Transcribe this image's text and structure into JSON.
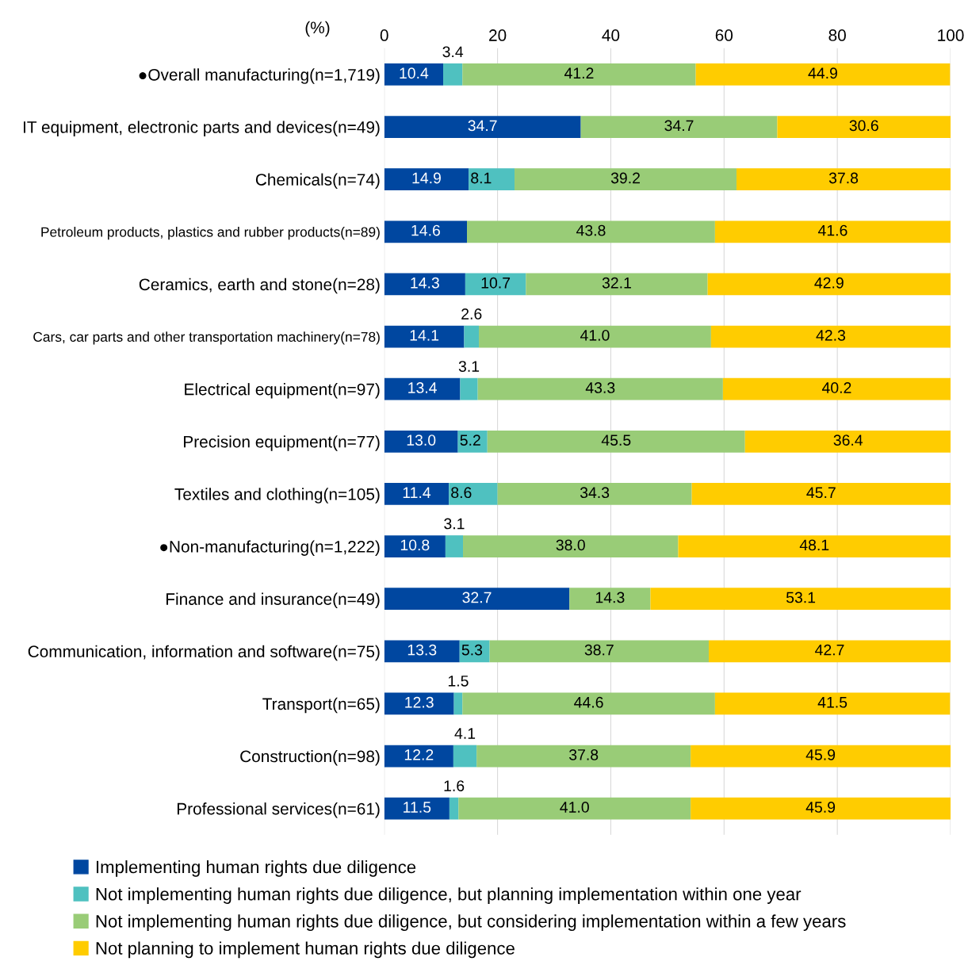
{
  "chart_data": {
    "type": "bar",
    "orientation": "horizontal",
    "stacked": true,
    "grid": "x",
    "legend": "bottom",
    "categories": [
      "●Overall manufacturing(n=1,719)",
      "IT equipment, electronic parts and devices(n=49)",
      "Chemicals(n=74)",
      "Petroleum products, plastics and rubber products(n=89)",
      "Ceramics, earth and stone(n=28)",
      "Cars, car parts and other transportation machinery(n=78)",
      "Electrical equipment(n=97)",
      "Precision equipment(n=77)",
      "Textiles and clothing(n=105)",
      "●Non-manufacturing(n=1,222)",
      "Finance and insurance(n=49)",
      "Communication, information and software(n=75)",
      "Transport(n=65)",
      "Construction(n=98)",
      "Professional services(n=61)"
    ],
    "series": [
      {
        "name": "Implementing human rights due diligence",
        "color": "#0047a0",
        "values": [
          10.4,
          34.7,
          14.9,
          14.6,
          14.3,
          14.1,
          13.4,
          13.0,
          11.4,
          10.8,
          32.7,
          13.3,
          12.3,
          12.2,
          11.5
        ],
        "value_labels": [
          "10.4",
          "34.7",
          "14.9",
          "14.6",
          "14.3",
          "14.1",
          "13.4",
          "13.0",
          "11.4",
          "10.8",
          "32.7",
          "13.3",
          "12.3",
          "12.2",
          "11.5"
        ]
      },
      {
        "name": "Not implementing human rights due diligence, but planning implementation within one year",
        "color": "#4fc1c0",
        "values": [
          3.4,
          null,
          8.1,
          null,
          10.7,
          2.6,
          3.1,
          5.2,
          8.6,
          3.1,
          null,
          5.3,
          1.5,
          4.1,
          1.6
        ],
        "value_labels": [
          "3.4",
          null,
          "8.1",
          null,
          "10.7",
          "2.6",
          "3.1",
          "5.2",
          "8.6",
          "3.1",
          null,
          "5.3",
          "1.5",
          "4.1",
          "1.6"
        ]
      },
      {
        "name": "Not implementing human rights due diligence, but considering implementation within a few years",
        "color": "#99cc77",
        "values": [
          41.2,
          34.7,
          39.2,
          43.8,
          32.1,
          41.0,
          43.3,
          45.5,
          34.3,
          38.0,
          14.3,
          38.7,
          44.6,
          37.8,
          41.0
        ],
        "value_labels": [
          "41.2",
          "34.7",
          "39.2",
          "43.8",
          "32.1",
          "41.0",
          "43.3",
          "45.5",
          "34.3",
          "38.0",
          "14.3",
          "38.7",
          "44.6",
          "37.8",
          "41.0"
        ]
      },
      {
        "name": "Not planning to implement human rights due diligence",
        "color": "#ffcc00",
        "values": [
          44.9,
          30.6,
          37.8,
          41.6,
          42.9,
          42.3,
          40.2,
          36.4,
          45.7,
          48.1,
          53.1,
          42.7,
          41.5,
          45.9,
          45.9
        ],
        "value_labels": [
          "44.9",
          "30.6",
          "37.8",
          "41.6",
          "42.9",
          "42.3",
          "40.2",
          "36.4",
          "45.7",
          "48.1",
          "53.1",
          "42.7",
          "41.5",
          "45.9",
          "45.9"
        ]
      }
    ],
    "xlim": [
      0,
      100
    ],
    "xticks": [
      0,
      20,
      40,
      60,
      80,
      100
    ],
    "annotations": [
      "(%)"
    ]
  }
}
